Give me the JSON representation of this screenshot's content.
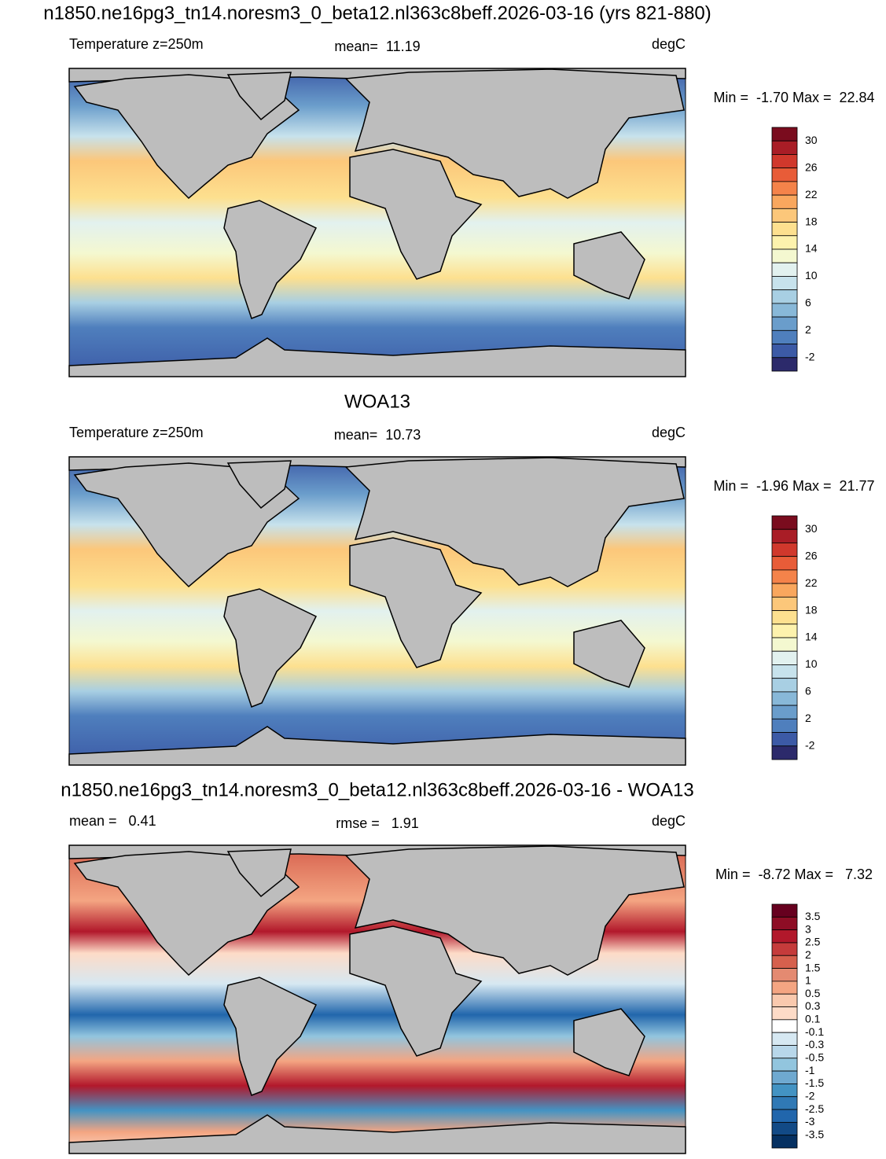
{
  "title": "n1850.ne16pg3_tn14.noresm3_0_beta12.nl363c8beff.2026-03-16 (yrs 821-880)",
  "panels": [
    {
      "left_label": "Temperature z=250m",
      "center_label": "mean=  11.19",
      "right_label": "degC",
      "minmax": "Min =  -1.70 Max =  22.84",
      "colorbar": {
        "labels": [
          "30",
          "26",
          "22",
          "18",
          "14",
          "10",
          "6",
          "2",
          "-2"
        ],
        "colors": [
          "#7a0c1e",
          "#a91d26",
          "#d0382c",
          "#e85c38",
          "#f4834a",
          "#f9a75e",
          "#fcc77a",
          "#fde08f",
          "#fdf2ad",
          "#f4f8d0",
          "#e2f1ef",
          "#c7e2ec",
          "#a8cfe3",
          "#88b8d8",
          "#6a9dcb",
          "#4f7fbd",
          "#3c5aa6",
          "#2c2a6b"
        ]
      }
    },
    {
      "title": "WOA13",
      "left_label": "Temperature z=250m",
      "center_label": "mean=  10.73",
      "right_label": "degC",
      "minmax": "Min =  -1.96 Max =  21.77",
      "colorbar": {
        "labels": [
          "30",
          "26",
          "22",
          "18",
          "14",
          "10",
          "6",
          "2",
          "-2"
        ],
        "colors": [
          "#7a0c1e",
          "#a91d26",
          "#d0382c",
          "#e85c38",
          "#f4834a",
          "#f9a75e",
          "#fcc77a",
          "#fde08f",
          "#fdf2ad",
          "#f4f8d0",
          "#e2f1ef",
          "#c7e2ec",
          "#a8cfe3",
          "#88b8d8",
          "#6a9dcb",
          "#4f7fbd",
          "#3c5aa6",
          "#2c2a6b"
        ]
      }
    },
    {
      "title": "n1850.ne16pg3_tn14.noresm3_0_beta12.nl363c8beff.2026-03-16 - WOA13",
      "left_label": "mean =   0.41",
      "center_label": "rmse =   1.91",
      "right_label": "degC",
      "minmax": "Min =  -8.72 Max =   7.32",
      "colorbar": {
        "labels": [
          "3.5",
          "3",
          "2.5",
          "2",
          "1.5",
          "1",
          "0.5",
          "0.3",
          "0.1",
          "-0.1",
          "-0.3",
          "-0.5",
          "-1",
          "-1.5",
          "-2",
          "-2.5",
          "-3",
          "-3.5"
        ],
        "colors": [
          "#67001f",
          "#8e0d25",
          "#b2182b",
          "#c53b3b",
          "#d6604d",
          "#e48a71",
          "#f4a582",
          "#f9c9ae",
          "#fddbc7",
          "#ffffff",
          "#d6e8f2",
          "#b8d7ea",
          "#92c5de",
          "#6fa9d0",
          "#4393c3",
          "#3079b5",
          "#2166ac",
          "#124a86",
          "#053061"
        ]
      }
    }
  ]
}
